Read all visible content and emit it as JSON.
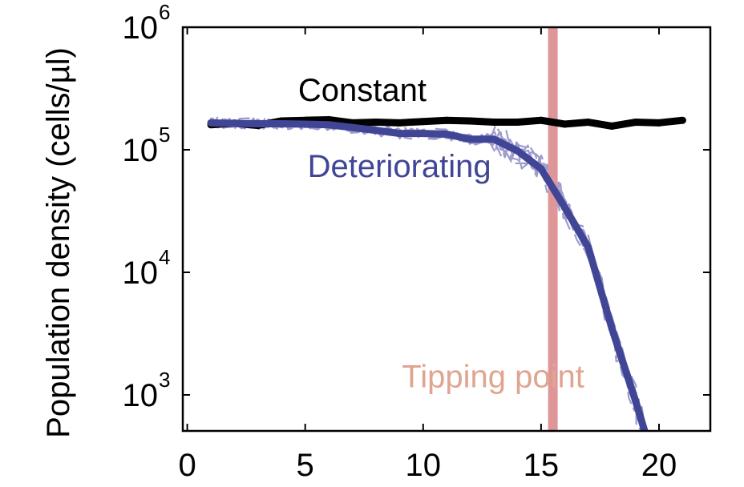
{
  "chart_data": {
    "type": "line",
    "title": "",
    "xlabel": "",
    "ylabel": "Population density (cells/µl)",
    "xlim": [
      0,
      22
    ],
    "ylim": [
      500,
      1000000
    ],
    "yscale": "log",
    "grid": false,
    "x_ticks": [
      {
        "value": 0,
        "label": "0"
      },
      {
        "value": 5,
        "label": "5"
      },
      {
        "value": 10,
        "label": "10"
      },
      {
        "value": 15,
        "label": "15"
      },
      {
        "value": 20,
        "label": "20"
      }
    ],
    "y_ticks": [
      {
        "value": 1000,
        "base": "10",
        "exp": "3"
      },
      {
        "value": 10000,
        "base": "10",
        "exp": "4"
      },
      {
        "value": 100000,
        "base": "10",
        "exp": "5"
      },
      {
        "value": 1000000,
        "base": "10",
        "exp": "6"
      }
    ],
    "series": [
      {
        "name": "Constant",
        "color": "#000000",
        "x": [
          1,
          2,
          3,
          4,
          5,
          6,
          7,
          8,
          9,
          10,
          11,
          12,
          13,
          14,
          15,
          16,
          17,
          18,
          19,
          20,
          21
        ],
        "y": [
          160000,
          165000,
          158000,
          172000,
          174000,
          176000,
          166000,
          168000,
          166000,
          170000,
          174000,
          172000,
          168000,
          168000,
          174000,
          162000,
          168000,
          156000,
          168000,
          166000,
          174000
        ]
      },
      {
        "name": "Deteriorating",
        "color": "#414596",
        "x": [
          1,
          2,
          3,
          4,
          5,
          6,
          7,
          8,
          9,
          10,
          11,
          12,
          13,
          14,
          15,
          16,
          17,
          18,
          19,
          19.4
        ],
        "y": [
          166000,
          164000,
          163000,
          163000,
          162000,
          160000,
          152000,
          144000,
          136000,
          136000,
          134000,
          122000,
          122000,
          98000,
          70000,
          34000,
          16000,
          3500,
          900,
          500
        ]
      }
    ],
    "replicate_colors": {
      "Constant": "#a6a6a6",
      "Deteriorating": "#9d9ccd"
    },
    "annotations": [
      {
        "text": "Constant",
        "color": "#000000",
        "x": 4.7,
        "y": 250000
      },
      {
        "text": "Deteriorating",
        "color": "#414596",
        "x": 5.1,
        "y": 60000
      },
      {
        "text": "Tipping point",
        "color": "#e0a590",
        "x": 9.1,
        "y": 1150
      }
    ],
    "vertical_band": {
      "x": 15.5,
      "color": "#df9699",
      "label": "Tipping point"
    }
  }
}
